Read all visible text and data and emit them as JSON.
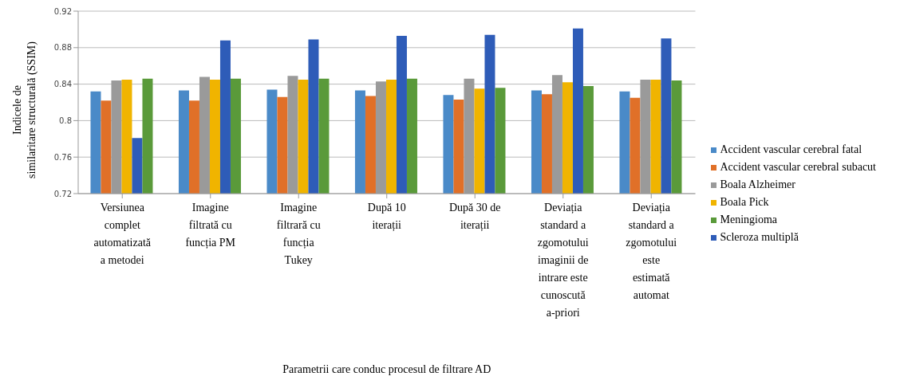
{
  "chart_data": {
    "type": "bar",
    "xlabel": "Parametrii care conduc procesul de filtrare AD",
    "ylabel": "Indicele de similaritare structurală (SSIM)",
    "categories": [
      "Versiunea complet automatizată a metodei",
      "Imagine filtrată cu funcția PM",
      "Imagine filtrară cu funcția Tukey",
      "După 10 iterații",
      "După 30 de iterații",
      "Deviația standard a zgomotului imaginii de intrare este cunoscută a-priori",
      "Deviația standard a zgomotului este estimată automat"
    ],
    "series": [
      {
        "name": "Accident vascular cerebral fatal",
        "color": "#4a8ac8",
        "values": [
          0.832,
          0.833,
          0.834,
          0.833,
          0.828,
          0.833,
          0.832
        ]
      },
      {
        "name": "Accident vascular cerebral subacut",
        "color": "#e07028",
        "values": [
          0.822,
          0.822,
          0.826,
          0.827,
          0.823,
          0.829,
          0.825
        ]
      },
      {
        "name": "Boala Alzheimer",
        "color": "#9a9a9a",
        "values": [
          0.844,
          0.848,
          0.849,
          0.843,
          0.846,
          0.85,
          0.845
        ]
      },
      {
        "name": "Boala Pick",
        "color": "#f0b400",
        "values": [
          0.845,
          0.845,
          0.845,
          0.845,
          0.835,
          0.842,
          0.845
        ]
      },
      {
        "name": "Scleroza multiplă",
        "color": "#2e5cb8",
        "values": [
          0.781,
          0.888,
          0.889,
          0.893,
          0.894,
          0.901,
          0.89
        ]
      },
      {
        "name": "Meningioma",
        "color": "#5a9a3a",
        "values": [
          0.846,
          0.846,
          0.846,
          0.846,
          0.836,
          0.838,
          0.844
        ]
      }
    ],
    "ylim": [
      0.72,
      0.92
    ],
    "yticks": [
      0.72,
      0.76,
      0.8,
      0.84,
      0.88,
      0.92
    ],
    "grid": "y",
    "legend": "right"
  }
}
